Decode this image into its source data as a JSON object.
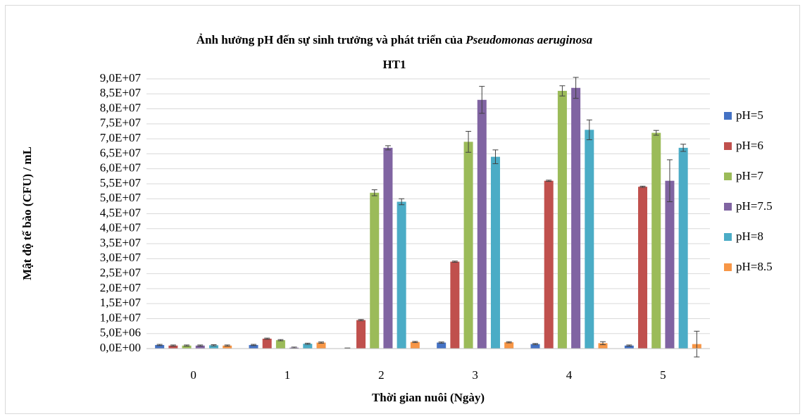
{
  "chart_data": {
    "type": "bar",
    "title": "Ảnh hưởng pH đến sự sinh trưởng và phát triển của",
    "title_italic": "Pseudomonas aeruginosa",
    "title_line2": "HT1",
    "x_label": "Thời gian nuôi (Ngày)",
    "y_label": "Mật độ tế bào (CFU) / mL",
    "categories": [
      "0",
      "1",
      "2",
      "3",
      "4",
      "5"
    ],
    "series": [
      {
        "name": "pH=5",
        "color": "#4472c4",
        "values": [
          1200000,
          1200000,
          100000,
          2000000,
          1500000,
          1000000
        ],
        "errors": [
          200000,
          200000,
          100000,
          200000,
          200000,
          200000
        ]
      },
      {
        "name": "pH=6",
        "color": "#c0504d",
        "values": [
          1000000,
          3300000,
          9500000,
          29000000,
          56000000,
          54000000
        ],
        "errors": [
          200000,
          200000,
          200000,
          200000,
          200000,
          200000
        ]
      },
      {
        "name": "pH=7",
        "color": "#9bbb59",
        "values": [
          1000000,
          2800000,
          52000000,
          69000000,
          86000000,
          72000000
        ],
        "errors": [
          200000,
          200000,
          1000000,
          3500000,
          1700000,
          800000
        ]
      },
      {
        "name": "pH=7.5",
        "color": "#8064a2",
        "values": [
          1000000,
          300000,
          67000000,
          83000000,
          87000000,
          56000000
        ],
        "errors": [
          200000,
          200000,
          700000,
          4500000,
          3500000,
          7000000
        ]
      },
      {
        "name": "pH=8",
        "color": "#4bacc6",
        "values": [
          1100000,
          1600000,
          49000000,
          64000000,
          73000000,
          67000000
        ],
        "errors": [
          200000,
          200000,
          1000000,
          2300000,
          3300000,
          1200000
        ]
      },
      {
        "name": "pH=8.5",
        "color": "#f79646",
        "values": [
          1000000,
          2000000,
          2200000,
          2100000,
          1800000,
          1500000
        ],
        "errors": [
          200000,
          200000,
          200000,
          200000,
          500000,
          4300000
        ]
      }
    ],
    "ylim": [
      0,
      90000000
    ],
    "yticks": [
      {
        "value": 0,
        "label": "0,0E+00"
      },
      {
        "value": 5000000,
        "label": "5,0E+06"
      },
      {
        "value": 10000000,
        "label": "1,0E+07"
      },
      {
        "value": 15000000,
        "label": "1,5E+07"
      },
      {
        "value": 20000000,
        "label": "2,0E+07"
      },
      {
        "value": 25000000,
        "label": "2,5E+07"
      },
      {
        "value": 30000000,
        "label": "3,0E+07"
      },
      {
        "value": 35000000,
        "label": "3,5E+07"
      },
      {
        "value": 40000000,
        "label": "4,0E+07"
      },
      {
        "value": 45000000,
        "label": "4,5E+07"
      },
      {
        "value": 50000000,
        "label": "5,0E+07"
      },
      {
        "value": 55000000,
        "label": "5,5E+07"
      },
      {
        "value": 60000000,
        "label": "6,0E+07"
      },
      {
        "value": 65000000,
        "label": "6,5E+07"
      },
      {
        "value": 70000000,
        "label": "7,0E+07"
      },
      {
        "value": 75000000,
        "label": "7,5E+07"
      },
      {
        "value": 80000000,
        "label": "8,0E+07"
      },
      {
        "value": 85000000,
        "label": "8,5E+07"
      },
      {
        "value": 90000000,
        "label": "9,0E+07"
      }
    ],
    "grid": true,
    "legend": "right"
  }
}
